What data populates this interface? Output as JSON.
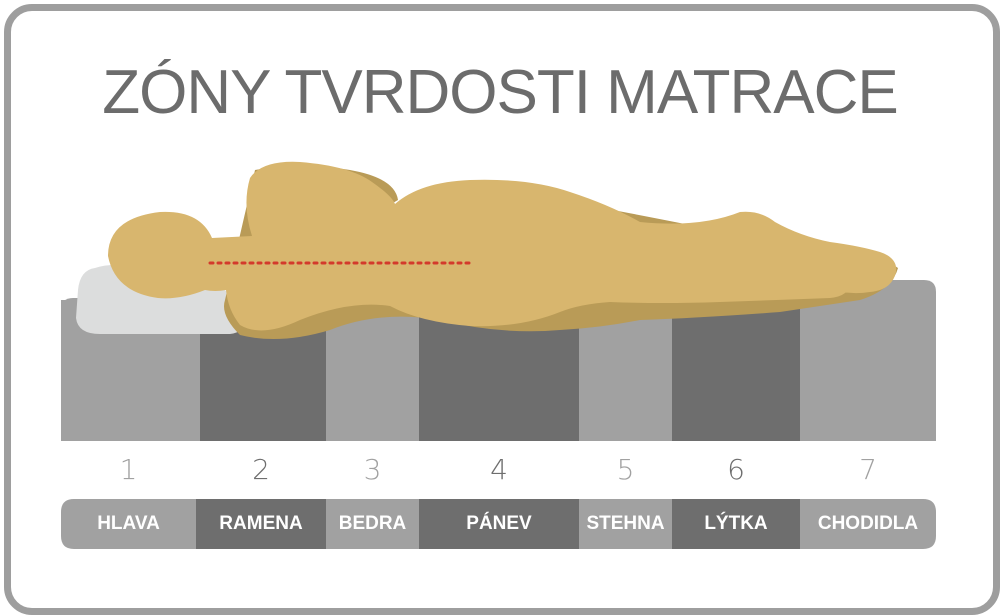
{
  "title": "ZÓNY TVRDOSTI MATRACE",
  "zones": [
    {
      "number": "1",
      "label": "HLAVA"
    },
    {
      "number": "2",
      "label": "RAMENA"
    },
    {
      "number": "3",
      "label": "BEDRA"
    },
    {
      "number": "4",
      "label": "PÁNEV"
    },
    {
      "number": "5",
      "label": "STEHNA"
    },
    {
      "number": "6",
      "label": "LÝTKA"
    },
    {
      "number": "7",
      "label": "CHODIDLA"
    }
  ],
  "colors": {
    "frame": "#9e9e9e",
    "title": "#6c6c6c",
    "zone_light": "#a1a1a1",
    "zone_dark": "#6e6e6e",
    "body": "#d8b66e",
    "body_shadow": "#b99b57",
    "pillow": "#dcdddd",
    "spine_line": "#d33a2c"
  }
}
